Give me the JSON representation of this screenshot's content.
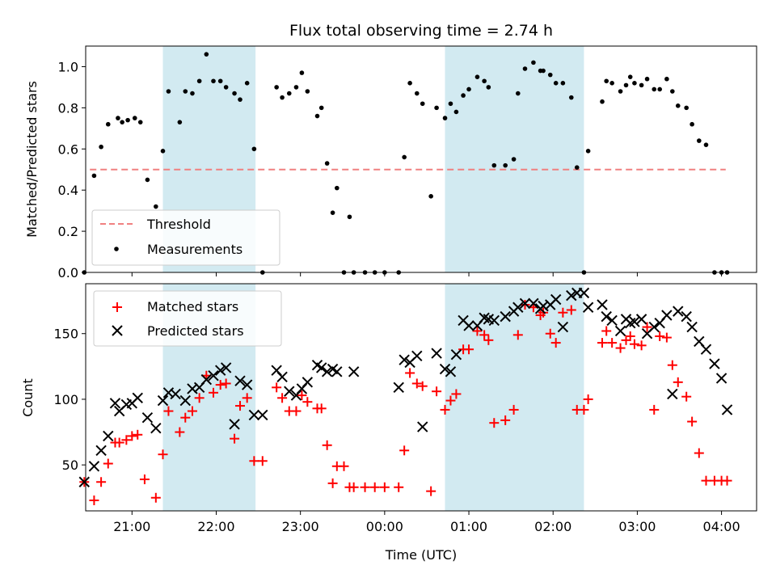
{
  "chart_data": [
    {
      "type": "scatter",
      "title": "Flux total observing time = 2.74 h",
      "xlabel": "",
      "ylabel": "Matched/Predicted stars",
      "xlim": [
        "20:27",
        "04:25"
      ],
      "ylim": [
        0,
        1.1
      ],
      "yticks": [
        0.0,
        0.2,
        0.4,
        0.6,
        0.8,
        1.0
      ],
      "ytick_labels": [
        "0.0",
        "0.2",
        "0.4",
        "0.6",
        "0.8",
        "1.0"
      ],
      "legend_position": "lower-left",
      "shaded_intervals": [
        [
          "21:22",
          "22:28"
        ],
        [
          "00:43",
          "02:22"
        ]
      ],
      "shade_color": "#add8e6",
      "series": [
        {
          "name": "Threshold",
          "kind": "dashed-line",
          "color": "#f08080",
          "x": [
            "20:30",
            "04:03"
          ],
          "y": [
            0.5,
            0.5
          ]
        },
        {
          "name": "Measurements",
          "kind": "dot",
          "color": "#000000",
          "x": [
            "20:26",
            "20:33",
            "20:38",
            "20:43",
            "20:50",
            "20:53",
            "20:57",
            "21:02",
            "21:06",
            "21:11",
            "21:17",
            "21:22",
            "21:26",
            "21:34",
            "21:38",
            "21:43",
            "21:48",
            "21:53",
            "21:58",
            "22:03",
            "22:07",
            "22:13",
            "22:17",
            "22:22",
            "22:27",
            "22:33",
            "22:43",
            "22:47",
            "22:52",
            "22:57",
            "23:01",
            "23:05",
            "23:12",
            "23:15",
            "23:19",
            "23:23",
            "23:26",
            "23:31",
            "23:35",
            "23:38",
            "23:46",
            "23:53",
            "24:00",
            "24:10",
            "24:14",
            "24:18",
            "24:23",
            "24:27",
            "24:33",
            "24:37",
            "24:43",
            "24:47",
            "24:51",
            "24:56",
            "25:00",
            "25:06",
            "25:11",
            "25:14",
            "25:18",
            "25:26",
            "25:32",
            "25:35",
            "25:40",
            "25:46",
            "25:51",
            "25:53",
            "25:58",
            "26:02",
            "26:07",
            "26:13",
            "26:17",
            "26:22",
            "26:25",
            "26:35",
            "26:38",
            "26:42",
            "26:48",
            "26:52",
            "26:55",
            "26:58",
            "27:03",
            "27:07",
            "27:12",
            "27:16",
            "27:21",
            "27:25",
            "27:29",
            "27:35",
            "27:39",
            "27:44",
            "27:49",
            "27:55",
            "28:00",
            "28:04"
          ],
          "y": [
            0.0,
            0.47,
            0.61,
            0.72,
            0.75,
            0.73,
            0.74,
            0.75,
            0.73,
            0.45,
            0.32,
            0.59,
            0.88,
            0.73,
            0.88,
            0.87,
            0.93,
            1.06,
            0.93,
            0.93,
            0.9,
            0.87,
            0.84,
            0.92,
            0.6,
            0.0,
            0.9,
            0.85,
            0.87,
            0.9,
            0.97,
            0.88,
            0.76,
            0.8,
            0.53,
            0.29,
            0.41,
            0.0,
            0.27,
            0.0,
            0.0,
            0.0,
            0.0,
            0.0,
            0.56,
            0.92,
            0.87,
            0.82,
            0.37,
            0.8,
            0.75,
            0.82,
            0.78,
            0.86,
            0.89,
            0.95,
            0.93,
            0.9,
            0.52,
            0.52,
            0.55,
            0.87,
            0.99,
            1.02,
            0.98,
            0.98,
            0.96,
            0.92,
            0.92,
            0.85,
            0.51,
            0.0,
            0.59,
            0.83,
            0.93,
            0.92,
            0.88,
            0.91,
            0.95,
            0.92,
            0.91,
            0.94,
            0.89,
            0.89,
            0.94,
            0.88,
            0.81,
            0.8,
            0.72,
            0.64,
            0.62,
            0.0,
            0.0,
            0.0
          ]
        }
      ]
    },
    {
      "type": "scatter",
      "title": "",
      "xlabel": "Time (UTC)",
      "ylabel": "Count",
      "xlim": [
        "20:27",
        "04:25"
      ],
      "ylim": [
        15,
        188
      ],
      "yticks": [
        50,
        100,
        150
      ],
      "ytick_labels": [
        "50",
        "100",
        "150"
      ],
      "xtick_labels": [
        "21:00",
        "22:00",
        "23:00",
        "00:00",
        "01:00",
        "02:00",
        "03:00",
        "04:00"
      ],
      "legend_position": "upper-left",
      "shaded_intervals": [
        [
          "21:22",
          "22:28"
        ],
        [
          "00:43",
          "02:22"
        ]
      ],
      "shade_color": "#add8e6",
      "series": [
        {
          "name": "Matched stars",
          "kind": "plus",
          "color": "#ff0000",
          "x": [
            "20:26",
            "20:33",
            "20:38",
            "20:43",
            "20:48",
            "20:51",
            "20:56",
            "21:00",
            "21:04",
            "21:09",
            "21:17",
            "21:22",
            "21:26",
            "21:34",
            "21:38",
            "21:43",
            "21:48",
            "21:53",
            "21:58",
            "22:03",
            "22:07",
            "22:13",
            "22:17",
            "22:22",
            "22:27",
            "22:33",
            "22:43",
            "22:47",
            "22:52",
            "22:57",
            "23:01",
            "23:05",
            "23:12",
            "23:15",
            "23:19",
            "23:23",
            "23:26",
            "23:31",
            "23:35",
            "23:38",
            "23:46",
            "23:53",
            "24:00",
            "24:10",
            "24:14",
            "24:18",
            "24:23",
            "24:27",
            "24:33",
            "24:37",
            "24:43",
            "24:47",
            "24:51",
            "24:56",
            "25:00",
            "25:06",
            "25:11",
            "25:14",
            "25:18",
            "25:26",
            "25:32",
            "25:35",
            "25:40",
            "25:46",
            "25:51",
            "25:53",
            "25:58",
            "26:02",
            "26:07",
            "26:13",
            "26:17",
            "26:22",
            "26:25",
            "26:35",
            "26:38",
            "26:42",
            "26:48",
            "26:52",
            "26:55",
            "26:58",
            "27:03",
            "27:07",
            "27:12",
            "27:16",
            "27:21",
            "27:25",
            "27:29",
            "27:35",
            "27:39",
            "27:44",
            "27:49",
            "27:55",
            "28:00",
            "28:04"
          ],
          "y": [
            37,
            23,
            37,
            51,
            67,
            67,
            69,
            72,
            73,
            39,
            25,
            58,
            91,
            75,
            86,
            91,
            101,
            118,
            105,
            111,
            112,
            70,
            95,
            101,
            53,
            53,
            109,
            101,
            91,
            91,
            103,
            98,
            93,
            93,
            65,
            36,
            49,
            49,
            33,
            33,
            33,
            33,
            33,
            33,
            61,
            120,
            112,
            110,
            30,
            106,
            92,
            99,
            104,
            138,
            138,
            152,
            149,
            145,
            82,
            84,
            92,
            149,
            172,
            170,
            164,
            166,
            150,
            143,
            166,
            168,
            92,
            92,
            100,
            143,
            152,
            143,
            139,
            145,
            148,
            142,
            141,
            155,
            92,
            148,
            147,
            126,
            113,
            102,
            83,
            59,
            38,
            38,
            38,
            38
          ]
        },
        {
          "name": "Predicted stars",
          "kind": "x",
          "color": "#000000",
          "x": [
            "20:26",
            "20:33",
            "20:38",
            "20:43",
            "20:48",
            "20:51",
            "20:56",
            "21:00",
            "21:04",
            "21:11",
            "21:17",
            "21:22",
            "21:26",
            "21:31",
            "21:38",
            "21:43",
            "21:48",
            "21:53",
            "21:58",
            "22:03",
            "22:07",
            "22:13",
            "22:17",
            "22:22",
            "22:27",
            "22:33",
            "22:43",
            "22:47",
            "22:52",
            "22:57",
            "23:01",
            "23:05",
            "23:12",
            "23:15",
            "23:19",
            "23:23",
            "23:26",
            "23:38",
            "24:10",
            "24:14",
            "24:18",
            "24:23",
            "24:27",
            "24:37",
            "24:43",
            "24:47",
            "24:51",
            "24:56",
            "25:00",
            "25:06",
            "25:11",
            "25:14",
            "25:18",
            "25:26",
            "25:32",
            "25:35",
            "25:40",
            "25:46",
            "25:51",
            "25:53",
            "25:58",
            "26:02",
            "26:07",
            "26:13",
            "26:17",
            "26:22",
            "26:25",
            "26:35",
            "26:38",
            "26:42",
            "26:48",
            "26:52",
            "26:55",
            "26:58",
            "27:03",
            "27:07",
            "27:12",
            "27:16",
            "27:21",
            "27:25",
            "27:29",
            "27:35",
            "27:39",
            "27:44",
            "27:49",
            "27:55",
            "28:00",
            "28:04"
          ],
          "y": [
            37,
            49,
            61,
            72,
            97,
            91,
            96,
            97,
            101,
            86,
            78,
            99,
            105,
            104,
            99,
            108,
            109,
            115,
            118,
            122,
            124,
            81,
            114,
            111,
            88,
            88,
            122,
            117,
            106,
            103,
            108,
            113,
            126,
            124,
            121,
            123,
            121,
            121,
            109,
            130,
            128,
            133,
            79,
            135,
            123,
            121,
            134,
            160,
            156,
            156,
            162,
            161,
            160,
            163,
            167,
            170,
            173,
            173,
            169,
            171,
            172,
            176,
            155,
            179,
            181,
            181,
            170,
            172,
            163,
            160,
            152,
            161,
            158,
            159,
            161,
            150,
            155,
            158,
            164,
            104,
            167,
            163,
            155,
            144,
            138,
            127,
            116,
            92
          ]
        }
      ]
    }
  ]
}
